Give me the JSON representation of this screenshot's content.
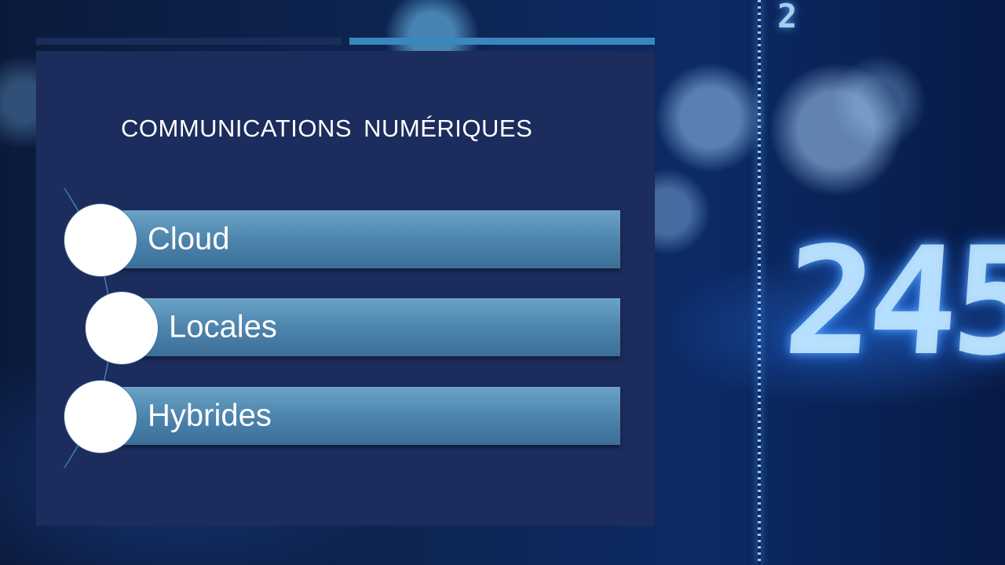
{
  "slide": {
    "title": "COMMUNICATIONS  NUMÉRIQUES",
    "items": [
      {
        "label": "Cloud"
      },
      {
        "label": "Locales"
      },
      {
        "label": "Hybrides"
      }
    ]
  },
  "background": {
    "top_readout": "2",
    "display_digits": "245"
  },
  "colors": {
    "panel": "#1c2c5c",
    "accent_dark": "#1a2c5a",
    "accent_light": "#3a87bd",
    "item_bar": "#4b82ab",
    "circle": "#ffffff"
  }
}
